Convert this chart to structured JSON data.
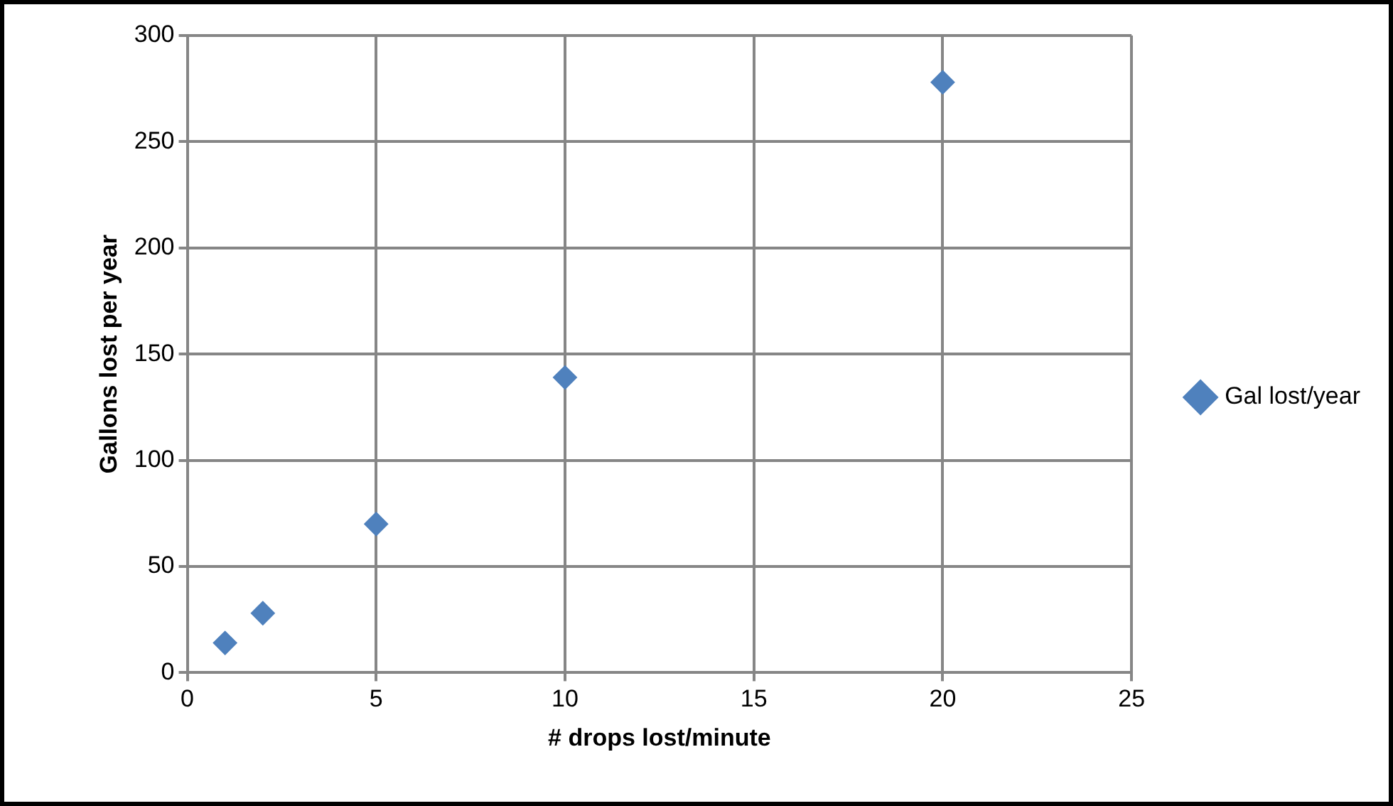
{
  "chart_data": {
    "type": "scatter",
    "xlabel": "# drops lost/minute",
    "ylabel": "Gallons lost per year",
    "x": [
      1,
      2,
      5,
      10,
      20
    ],
    "series": [
      {
        "name": "Gal lost/year",
        "color": "#4f81bd",
        "values": [
          14,
          28,
          70,
          139,
          278
        ]
      }
    ],
    "xlim": [
      0,
      25
    ],
    "xticks": [
      0,
      5,
      10,
      15,
      20,
      25
    ],
    "ylim": [
      0,
      300
    ],
    "yticks": [
      0,
      50,
      100,
      150,
      200,
      250,
      300
    ],
    "grid": true,
    "legend": "right",
    "marker": "diamond"
  }
}
